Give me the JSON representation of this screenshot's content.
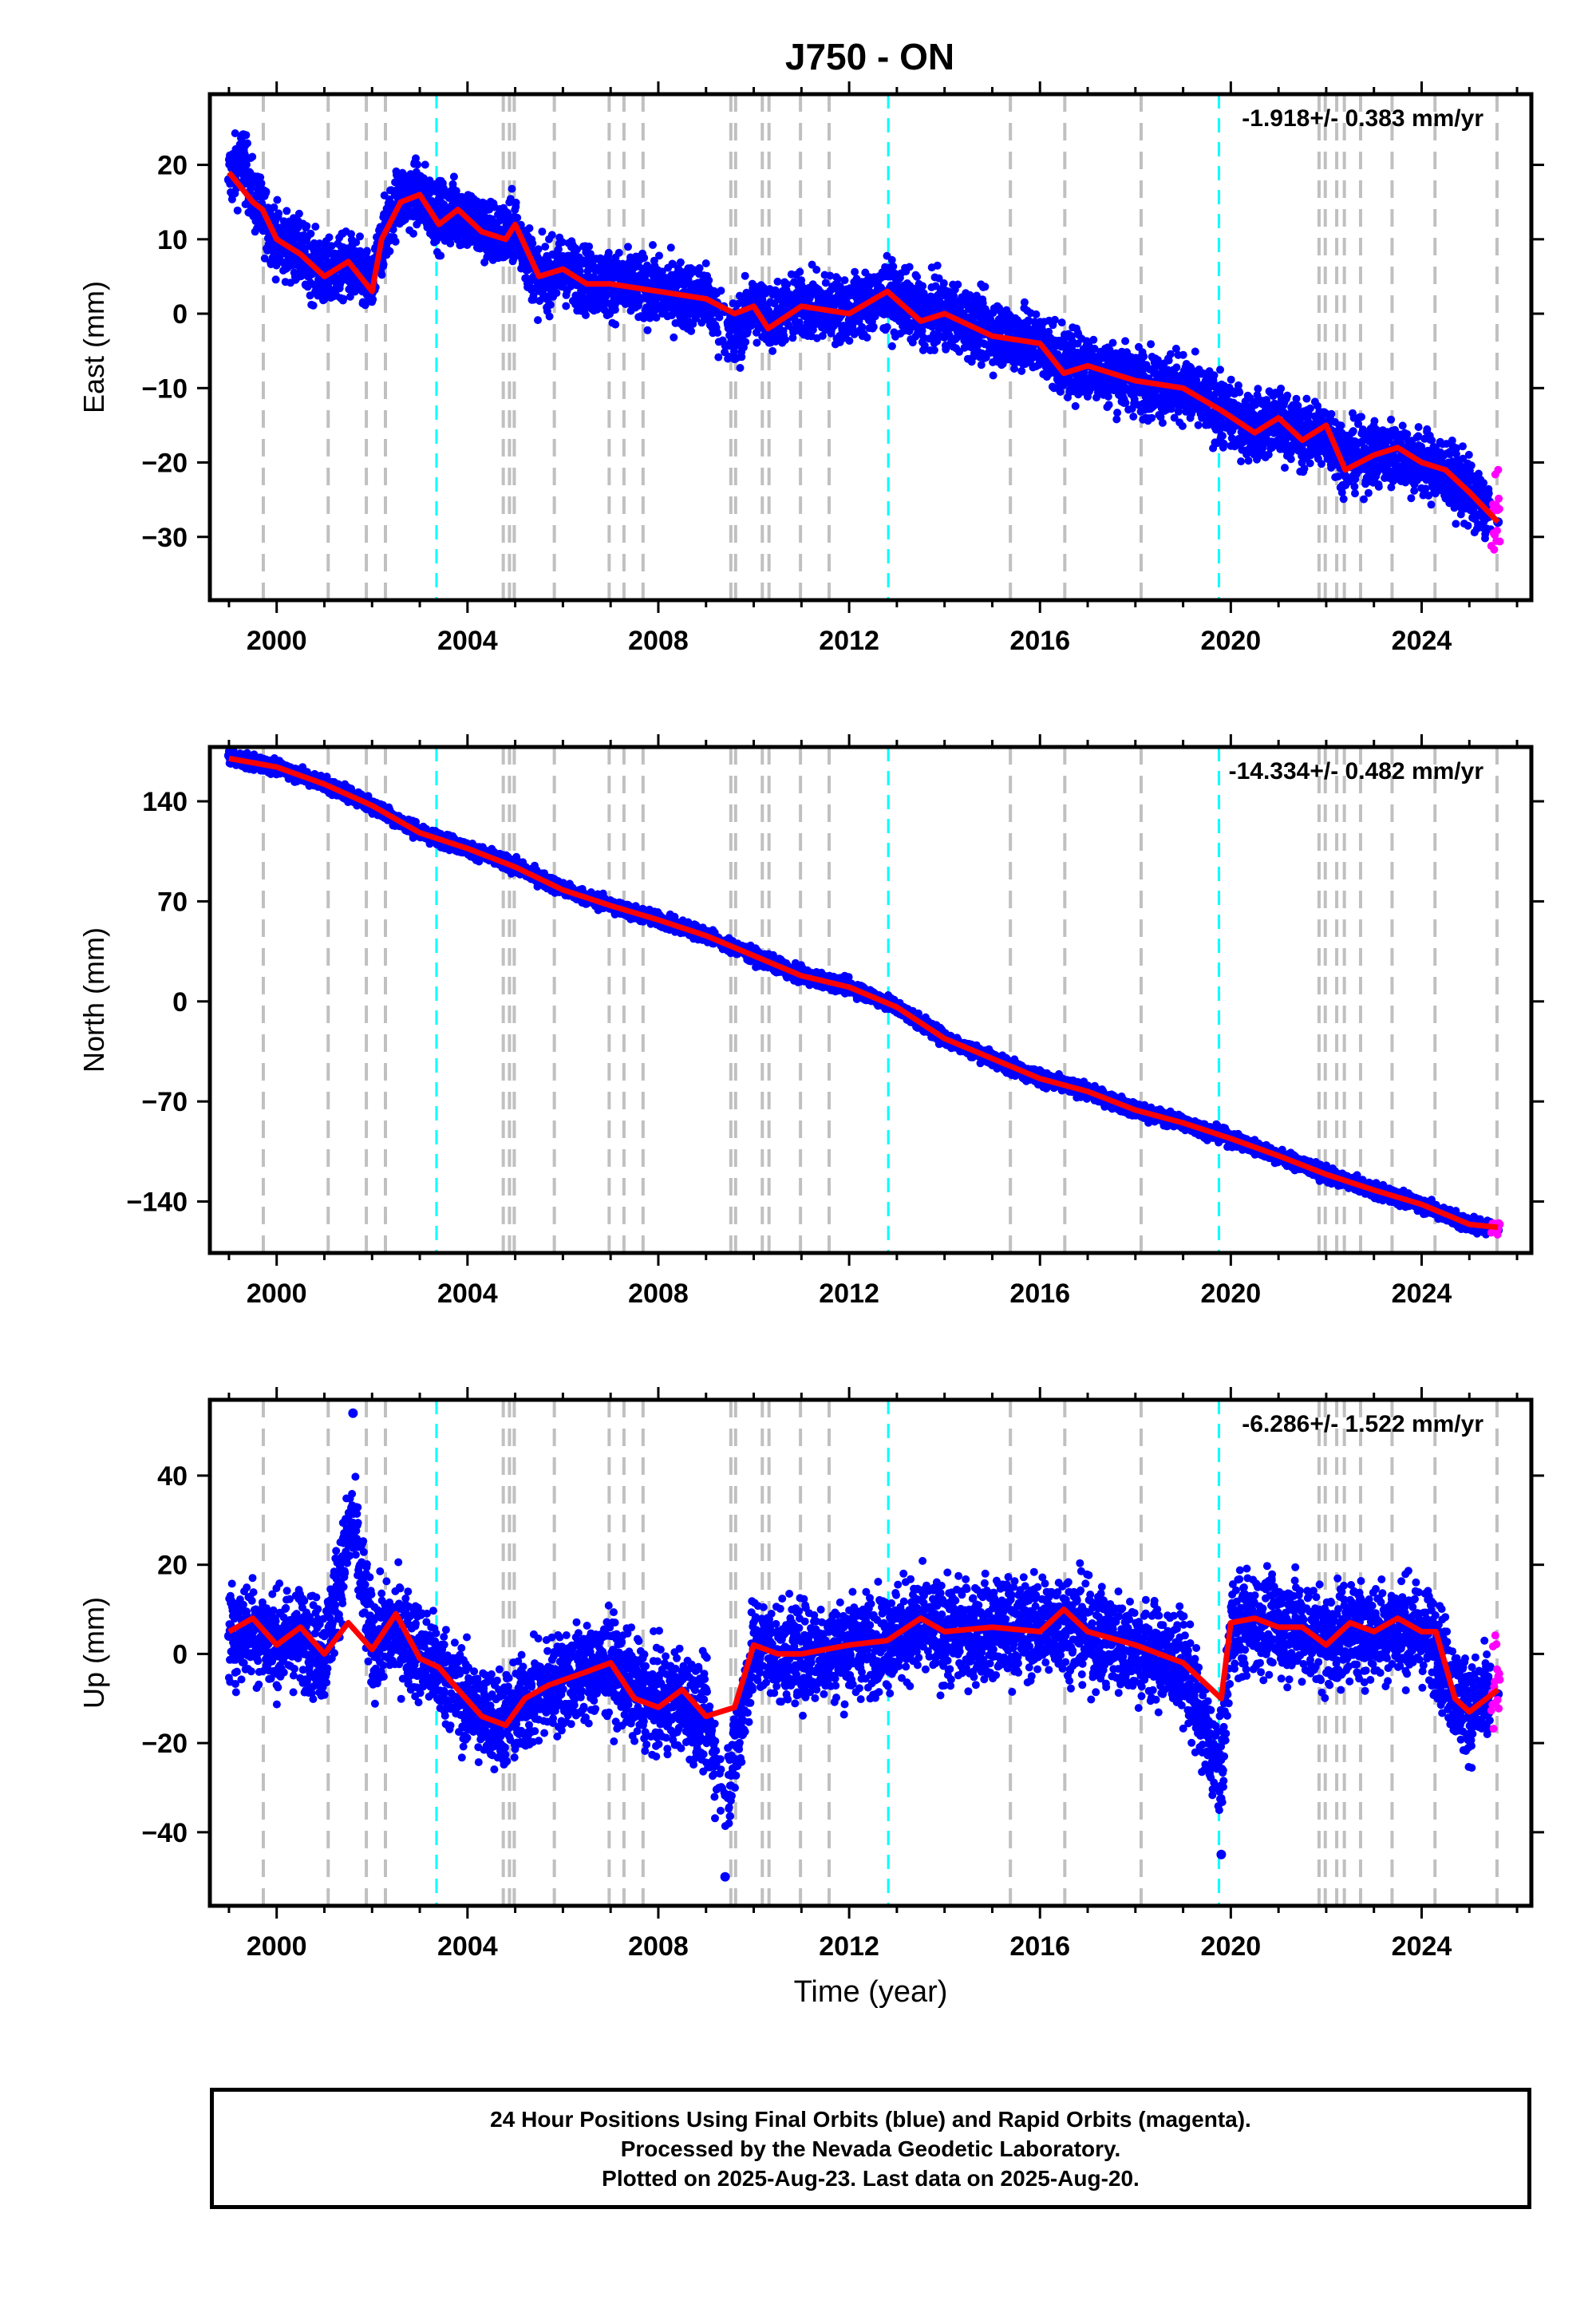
{
  "title": "J750 - ON",
  "xlabel": "Time (year)",
  "xticks": [
    "2000",
    "2004",
    "2008",
    "2012",
    "2016",
    "2020",
    "2024"
  ],
  "colors": {
    "final_orbit_points": "#0000ff",
    "rapid_orbit_points": "#ff00ff",
    "model_fit": "#ff0000",
    "equipment_change": "#c0c0c0",
    "earthquake_marker": "#00ffff",
    "axes": "#000000"
  },
  "caption": {
    "line1": "24 Hour Positions Using Final Orbits (blue) and Rapid Orbits (magenta).",
    "line2": "Processed by the Nevada Geodetic Laboratory.",
    "line3": "Plotted on 2025-Aug-23. Last data on 2025-Aug-20."
  },
  "chart_data": [
    {
      "type": "scatter",
      "panel": "east",
      "ylabel": "East (mm)",
      "rate_label": "-1.918+/- 0.383 mm/yr",
      "xlim": [
        1998.6,
        2026.3
      ],
      "ylim": [
        -38.5,
        29.5
      ],
      "yticks": [
        20,
        10,
        0,
        -10,
        -20,
        -30
      ],
      "ytick_labels": [
        "20",
        "10",
        "0",
        "−10",
        "−20",
        "−30"
      ],
      "model_fit": {
        "name": "model fit",
        "x": [
          1999.0,
          1999.5,
          1999.7,
          2000.0,
          2000.5,
          2001.0,
          2001.5,
          2002.0,
          2002.2,
          2002.6,
          2003.0,
          2003.4,
          2003.8,
          2004.3,
          2004.8,
          2005.0,
          2005.5,
          2006.0,
          2006.5,
          2007.0,
          2008.0,
          2009.0,
          2009.6,
          2010.0,
          2010.3,
          2011.0,
          2012.0,
          2012.8,
          2013.5,
          2014.0,
          2015.0,
          2016.0,
          2016.5,
          2017.0,
          2018.0,
          2019.0,
          2019.8,
          2020.5,
          2021.0,
          2021.5,
          2022.0,
          2022.4,
          2023.0,
          2023.5,
          2024.0,
          2024.5,
          2025.0,
          2025.6
        ],
        "y": [
          19,
          15,
          14,
          10,
          8,
          5,
          7,
          3,
          10,
          15,
          16,
          12,
          14,
          11,
          10,
          12,
          5,
          6,
          4,
          4,
          3,
          2,
          0,
          1,
          -2,
          1,
          0,
          3,
          -1,
          0,
          -3,
          -4,
          -8,
          -7,
          -9,
          -10,
          -13,
          -16,
          -14,
          -17,
          -15,
          -21,
          -19,
          -18,
          -20,
          -21,
          -24,
          -28
        ]
      },
      "observations": {
        "name": "daily positions",
        "x": [
          1999.0,
          1999.3,
          1999.6,
          2000.0,
          2000.5,
          2001.0,
          2001.5,
          2002.0,
          2002.5,
          2003.0,
          2003.5,
          2004.0,
          2004.5,
          2005.0,
          2005.5,
          2006.0,
          2007.0,
          2008.0,
          2009.0,
          2009.6,
          2010.0,
          2011.0,
          2012.0,
          2013.0,
          2014.0,
          2015.0,
          2016.0,
          2017.0,
          2018.0,
          2019.0,
          2020.0,
          2021.0,
          2022.0,
          2023.0,
          2024.0,
          2025.0,
          2025.6
        ],
        "y": [
          18,
          24,
          14,
          10,
          8,
          5,
          6,
          4,
          16,
          16,
          14,
          13,
          11,
          11,
          4,
          6,
          4,
          3,
          2,
          -6,
          1,
          1,
          1,
          2,
          0,
          -2,
          -4,
          -7,
          -9,
          -10,
          -14,
          -15,
          -17,
          -19,
          -20,
          -24,
          -28
        ]
      }
    },
    {
      "type": "scatter",
      "panel": "north",
      "ylabel": "North (mm)",
      "rate_label": "-14.334+/- 0.482 mm/yr",
      "xlim": [
        1998.6,
        2026.3
      ],
      "ylim": [
        -176,
        178
      ],
      "yticks": [
        140,
        70,
        0,
        -70,
        -140
      ],
      "ytick_labels": [
        "140",
        "70",
        "0",
        "−70",
        "−140"
      ],
      "model_fit": {
        "name": "model fit",
        "x": [
          1999.0,
          2000.0,
          2001.0,
          2002.0,
          2003.0,
          2004.0,
          2005.0,
          2006.0,
          2007.0,
          2008.0,
          2009.0,
          2010.0,
          2011.0,
          2012.0,
          2013.0,
          2014.0,
          2015.0,
          2016.0,
          2017.0,
          2018.0,
          2019.0,
          2020.0,
          2021.0,
          2022.0,
          2023.0,
          2024.0,
          2025.0,
          2025.6
        ],
        "y": [
          170,
          164,
          152,
          137,
          118,
          107,
          94,
          78,
          67,
          57,
          46,
          32,
          18,
          10,
          -4,
          -26,
          -40,
          -54,
          -63,
          -76,
          -85,
          -96,
          -108,
          -121,
          -132,
          -142,
          -156,
          -158
        ]
      },
      "observations": {
        "name": "daily positions",
        "x": [
          1999.0,
          2000.0,
          2001.0,
          2002.0,
          2003.0,
          2004.0,
          2005.0,
          2006.0,
          2007.0,
          2008.0,
          2009.0,
          2010.0,
          2011.0,
          2012.0,
          2013.0,
          2014.0,
          2015.0,
          2016.0,
          2017.0,
          2018.0,
          2019.0,
          2020.0,
          2021.0,
          2022.0,
          2023.0,
          2024.0,
          2025.0,
          2025.6
        ],
        "y": [
          172,
          164,
          153,
          138,
          118,
          107,
          95,
          79,
          67,
          57,
          47,
          32,
          18,
          11,
          -4,
          -26,
          -40,
          -54,
          -63,
          -76,
          -85,
          -96,
          -108,
          -121,
          -132,
          -142,
          -156,
          -160
        ]
      }
    },
    {
      "type": "scatter",
      "panel": "up",
      "ylabel": "Up (mm)",
      "rate_label": "-6.286+/- 1.522 mm/yr",
      "xlim": [
        1998.6,
        2026.3
      ],
      "ylim": [
        -56.5,
        57
      ],
      "yticks": [
        40,
        20,
        0,
        -20,
        -40
      ],
      "ytick_labels": [
        "40",
        "20",
        "0",
        "−20",
        "−40"
      ],
      "model_fit": {
        "name": "model fit",
        "x": [
          1999.0,
          1999.5,
          2000.0,
          2000.5,
          2001.0,
          2001.5,
          2002.0,
          2002.5,
          2003.0,
          2003.4,
          2003.8,
          2004.3,
          2004.8,
          2005.2,
          2005.7,
          2006.5,
          2007.0,
          2007.5,
          2008.0,
          2008.5,
          2009.0,
          2009.6,
          2010.0,
          2010.5,
          2011.0,
          2012.0,
          2012.8,
          2013.5,
          2014.0,
          2015.0,
          2016.0,
          2016.5,
          2017.0,
          2018.0,
          2019.0,
          2019.8,
          2020.0,
          2020.5,
          2021.0,
          2021.5,
          2022.0,
          2022.5,
          2023.0,
          2023.5,
          2024.0,
          2024.3,
          2024.7,
          2025.0,
          2025.6
        ],
        "y": [
          5,
          8,
          2,
          6,
          0,
          7,
          1,
          9,
          -1,
          -3,
          -8,
          -14,
          -16,
          -10,
          -7,
          -4,
          -2,
          -10,
          -12,
          -8,
          -14,
          -12,
          2,
          0,
          0,
          2,
          3,
          8,
          5,
          6,
          5,
          10,
          5,
          2,
          -2,
          -10,
          7,
          8,
          6,
          6,
          2,
          7,
          5,
          8,
          5,
          5,
          -10,
          -13,
          -8
        ]
      },
      "observations": {
        "name": "daily positions",
        "x": [
          1999.0,
          2000.0,
          2001.0,
          2001.6,
          2002.0,
          2003.0,
          2004.0,
          2005.0,
          2006.0,
          2007.0,
          2008.0,
          2009.0,
          2009.4,
          2010.0,
          2011.0,
          2012.0,
          2013.0,
          2014.0,
          2015.0,
          2016.0,
          2017.0,
          2018.0,
          2019.0,
          2019.8,
          2020.0,
          2021.0,
          2022.0,
          2023.0,
          2024.0,
          2025.0,
          2025.6
        ],
        "y": [
          4,
          3,
          0,
          54,
          3,
          2,
          -12,
          -14,
          -6,
          -3,
          -10,
          -15,
          -50,
          1,
          0,
          1,
          5,
          4,
          5,
          7,
          4,
          1,
          -3,
          -45,
          6,
          7,
          3,
          5,
          4,
          -12,
          -9
        ]
      }
    }
  ],
  "event_markers": {
    "equipment_changes": [
      1999.72,
      2001.08,
      2001.88,
      2002.28,
      2004.75,
      2004.88,
      2004.98,
      2005.82,
      2006.97,
      2007.28,
      2007.68,
      2009.52,
      2009.62,
      2010.18,
      2010.32,
      2010.98,
      2011.58,
      2015.38,
      2016.52,
      2018.12,
      2021.85,
      2021.98,
      2022.22,
      2022.38,
      2022.72,
      2023.38,
      2024.28,
      2025.58
    ],
    "earthquakes": [
      2003.35,
      2012.82,
      2019.75
    ]
  }
}
